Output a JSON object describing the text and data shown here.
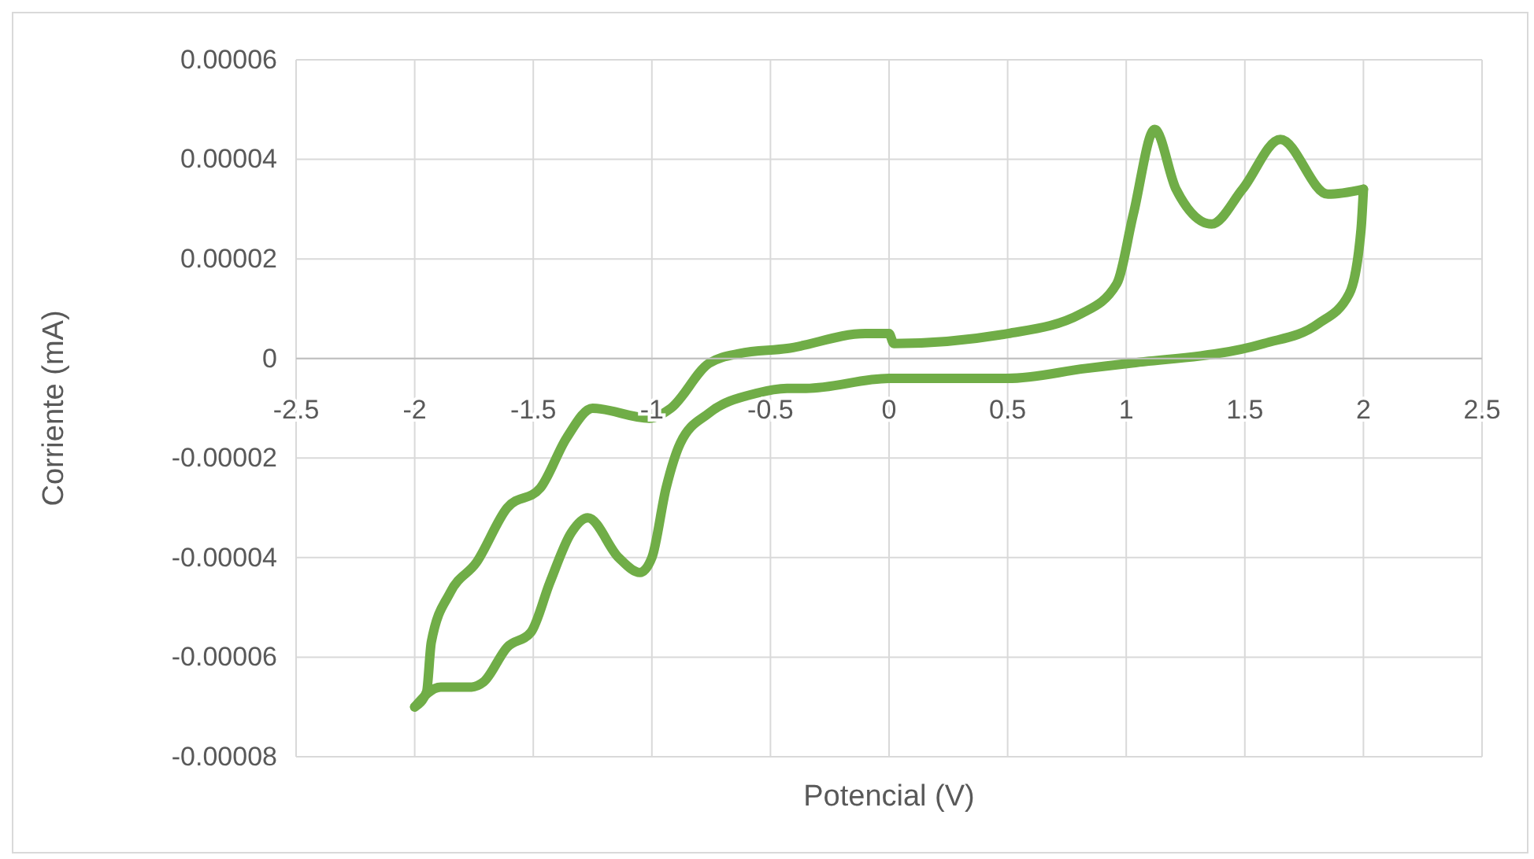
{
  "chart_data": {
    "type": "line",
    "xlabel": "Potencial (V)",
    "ylabel": "Corriente (mA)",
    "xlim": [
      -2.5,
      2.5
    ],
    "xticks": [
      -2.5,
      -2,
      -1.5,
      -1,
      -0.5,
      0,
      0.5,
      1,
      1.5,
      2,
      2.5
    ],
    "ylim": [
      -8e-05,
      6e-05
    ],
    "yticks": [
      {
        "value": -8e-05,
        "label": "-0.00008"
      },
      {
        "value": -6e-05,
        "label": "-0.00006"
      },
      {
        "value": -4e-05,
        "label": "-0.00004"
      },
      {
        "value": -2e-05,
        "label": "-0.00002"
      },
      0,
      {
        "value": 2e-05,
        "label": "0.00002"
      },
      {
        "value": 4e-05,
        "label": "0.00004"
      },
      {
        "value": 6e-05,
        "label": "0.00006"
      }
    ],
    "grid": true,
    "marker": "none",
    "line_style": "solid",
    "series": [
      {
        "color": "#70ad47",
        "x": [
          -2,
          -1.95,
          -1.93,
          -1.85,
          -1.74,
          -1.61,
          -1.47,
          -1.36,
          -1.25,
          -1.01,
          -0.92,
          -0.76,
          -0.63,
          -0.43,
          -0.1,
          0,
          0.02,
          0.5,
          0.81,
          0.96,
          1.03,
          1.12,
          1.21,
          1.36,
          1.49,
          1.65,
          1.85,
          2
        ],
        "values": [
          -7e-05,
          -6.7e-05,
          -5.7e-05,
          -4.7e-05,
          -4.1e-05,
          -3e-05,
          -2.6e-05,
          -1.6e-05,
          -1e-05,
          -1.2e-05,
          -1e-05,
          -1e-06,
          1e-06,
          2e-06,
          5e-06,
          5e-06,
          3e-06,
          5e-06,
          9e-06,
          1.5e-05,
          2.9e-05,
          4.6e-05,
          3.4e-05,
          2.7e-05,
          3.4e-05,
          4.4e-05,
          3.3e-05,
          3.4e-05
        ]
      },
      {
        "color": "#70ad47",
        "x": [
          -2,
          -1.89,
          -1.76,
          -1.71,
          -1.61,
          -1.51,
          -1.43,
          -1.34,
          -1.27,
          -1.14,
          -1.05,
          -1,
          -0.94,
          -0.88,
          -0.76,
          -0.56,
          -0.43,
          -0.35,
          0,
          0.5,
          0.83,
          1.01,
          1.58,
          1.81,
          1.94,
          1.99,
          2
        ],
        "values": [
          -7e-05,
          -6.6e-05,
          -6.6e-05,
          -6.5e-05,
          -5.8e-05,
          -5.5e-05,
          -4.5e-05,
          -3.5e-05,
          -3.2e-05,
          -4e-05,
          -4.3e-05,
          -4e-05,
          -2.6e-05,
          -1.7e-05,
          -1.1e-05,
          -7e-06,
          -6e-06,
          -6e-06,
          -4e-06,
          -4e-06,
          -2e-06,
          -1e-06,
          3e-06,
          7e-06,
          1.3e-05,
          2.6e-05,
          3.4e-05
        ]
      }
    ]
  }
}
